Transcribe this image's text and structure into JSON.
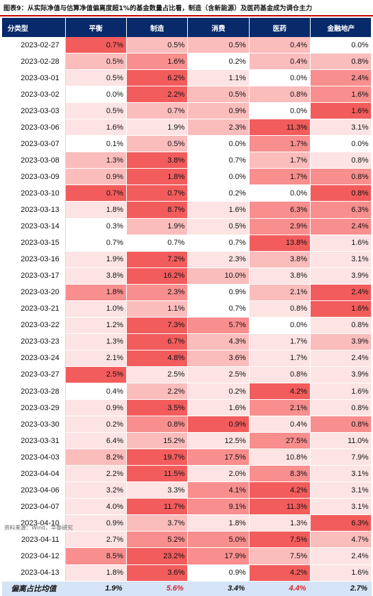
{
  "title": "图表9：从实际净值与估算净值偏离度超1%的基金数量占比看，制造（含新能源）及医药基金成为调仓主力",
  "header": [
    "分类型",
    "平衡",
    "制造",
    "消费",
    "医药",
    "金融地产"
  ],
  "colors": {
    "header_bg": "#082a6b",
    "accent": "#c00000",
    "footer_bg": "#d4e4f6",
    "heat_max": "#f25c5c"
  },
  "rows": [
    {
      "date": "2023-02-27",
      "values": [
        "0.7%",
        "0.5%",
        "0.5%",
        "0.4%",
        "0.0%"
      ]
    },
    {
      "date": "2023-02-28",
      "values": [
        "0.5%",
        "1.6%",
        "0.2%",
        "0.4%",
        "0.8%"
      ]
    },
    {
      "date": "2023-03-01",
      "values": [
        "0.5%",
        "6.2%",
        "1.1%",
        "0.0%",
        "2.4%"
      ]
    },
    {
      "date": "2023-03-02",
      "values": [
        "0.0%",
        "2.2%",
        "0.5%",
        "0.8%",
        "1.6%"
      ]
    },
    {
      "date": "2023-03-03",
      "values": [
        "0.5%",
        "0.7%",
        "0.9%",
        "0.0%",
        "1.6%"
      ]
    },
    {
      "date": "2023-03-06",
      "values": [
        "1.6%",
        "1.9%",
        "2.3%",
        "11.3%",
        "3.1%"
      ]
    },
    {
      "date": "2023-03-07",
      "values": [
        "0.1%",
        "0.5%",
        "0.0%",
        "1.7%",
        "0.0%"
      ]
    },
    {
      "date": "2023-03-08",
      "values": [
        "1.3%",
        "3.8%",
        "0.7%",
        "1.7%",
        "0.8%"
      ]
    },
    {
      "date": "2023-03-09",
      "values": [
        "0.9%",
        "1.8%",
        "0.0%",
        "1.7%",
        "0.8%"
      ]
    },
    {
      "date": "2023-03-10",
      "values": [
        "0.7%",
        "0.7%",
        "0.2%",
        "0.0%",
        "0.8%"
      ]
    },
    {
      "date": "2023-03-13",
      "values": [
        "1.8%",
        "8.7%",
        "1.6%",
        "6.3%",
        "6.3%"
      ]
    },
    {
      "date": "2023-03-14",
      "values": [
        "0.3%",
        "1.9%",
        "0.5%",
        "2.9%",
        "2.4%"
      ]
    },
    {
      "date": "2023-03-15",
      "values": [
        "0.7%",
        "0.7%",
        "0.7%",
        "13.8%",
        "1.6%"
      ]
    },
    {
      "date": "2023-03-16",
      "values": [
        "1.9%",
        "7.2%",
        "2.3%",
        "3.8%",
        "3.1%"
      ]
    },
    {
      "date": "2023-03-17",
      "values": [
        "3.8%",
        "16.2%",
        "10.0%",
        "3.8%",
        "3.9%"
      ]
    },
    {
      "date": "2023-03-20",
      "values": [
        "1.8%",
        "2.3%",
        "0.9%",
        "2.1%",
        "2.4%"
      ]
    },
    {
      "date": "2023-03-21",
      "values": [
        "1.0%",
        "1.1%",
        "0.7%",
        "0.8%",
        "1.6%"
      ]
    },
    {
      "date": "2023-03-22",
      "values": [
        "1.2%",
        "7.3%",
        "5.7%",
        "0.0%",
        "0.8%"
      ]
    },
    {
      "date": "2023-03-23",
      "values": [
        "1.3%",
        "6.7%",
        "4.3%",
        "1.7%",
        "3.9%"
      ]
    },
    {
      "date": "2023-03-24",
      "values": [
        "2.1%",
        "4.8%",
        "3.6%",
        "1.7%",
        "2.4%"
      ]
    },
    {
      "date": "2023-03-27",
      "values": [
        "2.5%",
        "2.5%",
        "2.5%",
        "0.8%",
        "3.9%"
      ]
    },
    {
      "date": "2023-03-28",
      "values": [
        "0.4%",
        "2.2%",
        "0.2%",
        "4.2%",
        "1.6%"
      ]
    },
    {
      "date": "2023-03-29",
      "values": [
        "0.9%",
        "3.5%",
        "1.6%",
        "2.1%",
        "0.8%"
      ]
    },
    {
      "date": "2023-03-30",
      "values": [
        "0.2%",
        "0.8%",
        "0.9%",
        "0.4%",
        "0.8%"
      ]
    },
    {
      "date": "2023-03-31",
      "values": [
        "6.4%",
        "15.2%",
        "12.5%",
        "27.5%",
        "11.0%"
      ]
    },
    {
      "date": "2023-04-03",
      "values": [
        "8.2%",
        "19.7%",
        "17.5%",
        "10.8%",
        "7.9%"
      ]
    },
    {
      "date": "2023-04-04",
      "values": [
        "2.2%",
        "11.5%",
        "2.0%",
        "8.3%",
        "3.1%"
      ]
    },
    {
      "date": "2023-04-06",
      "values": [
        "3.2%",
        "3.3%",
        "4.1%",
        "4.2%",
        "3.1%"
      ]
    },
    {
      "date": "2023-04-07",
      "values": [
        "4.0%",
        "11.7%",
        "9.1%",
        "11.3%",
        "3.1%"
      ]
    },
    {
      "date": "2023-04-10",
      "values": [
        "0.9%",
        "3.7%",
        "1.8%",
        "1.3%",
        "6.3%"
      ]
    },
    {
      "date": "2023-04-11",
      "values": [
        "2.7%",
        "5.2%",
        "5.0%",
        "7.5%",
        "4.7%"
      ]
    },
    {
      "date": "2023-04-12",
      "values": [
        "8.5%",
        "23.2%",
        "17.9%",
        "7.5%",
        "2.4%"
      ]
    },
    {
      "date": "2023-04-13",
      "values": [
        "1.8%",
        "3.6%",
        "0.9%",
        "4.2%",
        "1.6%"
      ]
    }
  ],
  "heat_levels": [
    [
      4,
      2,
      2,
      2,
      0
    ],
    [
      2,
      3,
      0,
      2,
      2
    ],
    [
      1,
      4,
      1,
      0,
      3
    ],
    [
      0,
      4,
      2,
      2,
      3
    ],
    [
      1,
      2,
      2,
      0,
      4
    ],
    [
      1,
      1,
      2,
      4,
      1
    ],
    [
      0,
      2,
      0,
      3,
      0
    ],
    [
      2,
      4,
      0,
      2,
      1
    ],
    [
      2,
      4,
      0,
      3,
      3
    ],
    [
      4,
      4,
      0,
      0,
      4
    ],
    [
      1,
      4,
      1,
      3,
      3
    ],
    [
      0,
      2,
      1,
      3,
      3
    ],
    [
      0,
      0,
      0,
      4,
      1
    ],
    [
      1,
      4,
      1,
      2,
      1
    ],
    [
      1,
      4,
      2,
      1,
      1
    ],
    [
      3,
      3,
      0,
      2,
      4
    ],
    [
      1,
      2,
      0,
      1,
      4
    ],
    [
      1,
      4,
      3,
      0,
      1
    ],
    [
      1,
      4,
      2,
      1,
      2
    ],
    [
      1,
      4,
      2,
      1,
      1
    ],
    [
      4,
      1,
      1,
      1,
      1
    ],
    [
      0,
      2,
      1,
      4,
      1
    ],
    [
      1,
      4,
      1,
      3,
      1
    ],
    [
      1,
      3,
      4,
      1,
      3
    ],
    [
      1,
      2,
      1,
      3,
      1
    ],
    [
      2,
      4,
      3,
      1,
      1
    ],
    [
      1,
      4,
      1,
      3,
      1
    ],
    [
      1,
      1,
      3,
      4,
      1
    ],
    [
      1,
      4,
      3,
      4,
      1
    ],
    [
      1,
      2,
      1,
      1,
      4
    ],
    [
      1,
      3,
      3,
      4,
      2
    ],
    [
      3,
      4,
      3,
      2,
      1
    ],
    [
      1,
      4,
      0,
      4,
      1
    ]
  ],
  "footer": {
    "label": "偏离占比均值",
    "values": [
      "1.9%",
      "5.6%",
      "3.4%",
      "4.4%",
      "2.7%"
    ],
    "highlight": [
      false,
      true,
      false,
      true,
      false
    ]
  },
  "source": "资料来源：Wind，华泰研究"
}
